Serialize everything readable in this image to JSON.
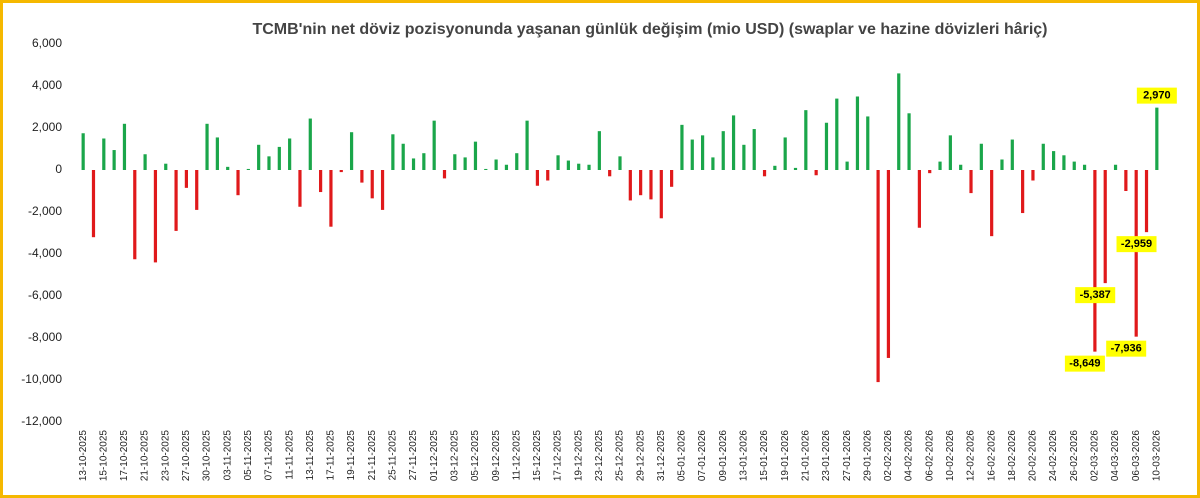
{
  "chart_data": {
    "type": "bar",
    "title": "TCMB'nin net döviz pozisyonunda yaşanan günlük değişim (mio USD) (swaplar ve hazine dövizleri hâriç)",
    "categories": [
      "13-10-2025",
      null,
      "15-10-2025",
      null,
      "17-10-2025",
      null,
      "21-10-2025",
      null,
      "23-10-2025",
      null,
      "27-10-2025",
      null,
      "30-10-2025",
      null,
      "03-11-2025",
      null,
      "05-11-2025",
      null,
      "07-11-2025",
      null,
      "11-11-2025",
      null,
      "13-11-2025",
      null,
      "17-11-2025",
      null,
      "19-11-2025",
      null,
      "21-11-2025",
      null,
      "25-11-2025",
      null,
      "27-11-2025",
      null,
      "01-12-2025",
      null,
      "03-12-2025",
      null,
      "05-12-2025",
      null,
      "09-12-2025",
      null,
      "11-12-2025",
      null,
      "15-12-2025",
      null,
      "17-12-2025",
      null,
      "19-12-2025",
      null,
      "23-12-2025",
      null,
      "25-12-2025",
      null,
      "29-12-2025",
      null,
      "31-12-2025",
      null,
      "05-01-2026",
      null,
      "07-01-2026",
      null,
      "09-01-2026",
      null,
      "13-01-2026",
      null,
      "15-01-2026",
      null,
      "19-01-2026",
      null,
      "21-01-2026",
      null,
      "23-01-2026",
      null,
      "27-01-2026",
      null,
      "29-01-2026",
      null,
      "02-02-2026",
      null,
      "04-02-2026",
      null,
      "06-02-2026",
      null,
      "10-02-2026",
      null,
      "12-02-2026",
      null,
      "16-02-2026",
      null,
      "18-02-2026",
      null,
      "20-02-2026",
      null,
      "24-02-2026",
      null,
      "26-02-2026",
      null,
      "02-03-2026",
      null,
      "04-03-2026",
      null,
      "06-03-2026",
      null,
      "10-03-2026"
    ],
    "values": [
      1750,
      -3200,
      1500,
      950,
      2200,
      -4250,
      750,
      -4400,
      300,
      -2900,
      -850,
      -1900,
      2200,
      1550,
      150,
      -1200,
      50,
      1200,
      650,
      1100,
      1500,
      -1750,
      2450,
      -1050,
      -2700,
      -100,
      1800,
      -600,
      -1350,
      -1900,
      1700,
      1250,
      550,
      800,
      2350,
      -400,
      750,
      600,
      1350,
      50,
      500,
      250,
      800,
      2350,
      -750,
      -500,
      700,
      450,
      300,
      250,
      1850,
      -300,
      650,
      -1450,
      -1200,
      -1400,
      -2300,
      -800,
      2150,
      1450,
      1650,
      600,
      1850,
      2600,
      1200,
      1950,
      -300,
      200,
      1550,
      100,
      2850,
      -250,
      2250,
      3400,
      400,
      3500,
      2550,
      -10100,
      -8950,
      4600,
      2700,
      -2750,
      -150,
      400,
      1650,
      250,
      -1100,
      1250,
      -3150,
      500,
      1450,
      -2050,
      -500,
      1250,
      900,
      700,
      400,
      250,
      -8649,
      -5387,
      250,
      -1000,
      -7936,
      -2959,
      2970
    ],
    "value_labels": [
      null,
      null,
      null,
      null,
      null,
      null,
      null,
      null,
      null,
      null,
      null,
      null,
      null,
      null,
      null,
      null,
      null,
      null,
      null,
      null,
      null,
      null,
      null,
      null,
      null,
      null,
      null,
      null,
      null,
      null,
      null,
      null,
      null,
      null,
      null,
      null,
      null,
      null,
      null,
      null,
      null,
      null,
      null,
      null,
      null,
      null,
      null,
      null,
      null,
      null,
      null,
      null,
      null,
      null,
      null,
      null,
      null,
      null,
      null,
      null,
      null,
      null,
      null,
      null,
      null,
      null,
      null,
      null,
      null,
      null,
      null,
      null,
      null,
      null,
      null,
      null,
      null,
      null,
      null,
      null,
      null,
      null,
      null,
      null,
      null,
      null,
      null,
      null,
      null,
      null,
      null,
      null,
      null,
      null,
      null,
      null,
      null,
      null,
      "-8,649",
      "-5,387",
      null,
      null,
      "-7,936",
      "-2,959",
      "2,970"
    ],
    "positive_color": "#1aa64a",
    "negative_color": "#e0191b",
    "ylim": [
      -12000,
      6000
    ],
    "yticks": [
      {
        "value": -12000,
        "label": "-12,000"
      },
      {
        "value": -10000,
        "label": "-10,000"
      },
      {
        "value": -8000,
        "label": "-8,000"
      },
      {
        "value": -6000,
        "label": "-6,000"
      },
      {
        "value": -4000,
        "label": "-4,000"
      },
      {
        "value": -2000,
        "label": "-2,000"
      },
      0,
      {
        "value": 2000,
        "label": "2,000"
      },
      {
        "value": 4000,
        "label": "4,000"
      },
      {
        "value": 6000,
        "label": "6,000"
      }
    ],
    "grid": false
  }
}
